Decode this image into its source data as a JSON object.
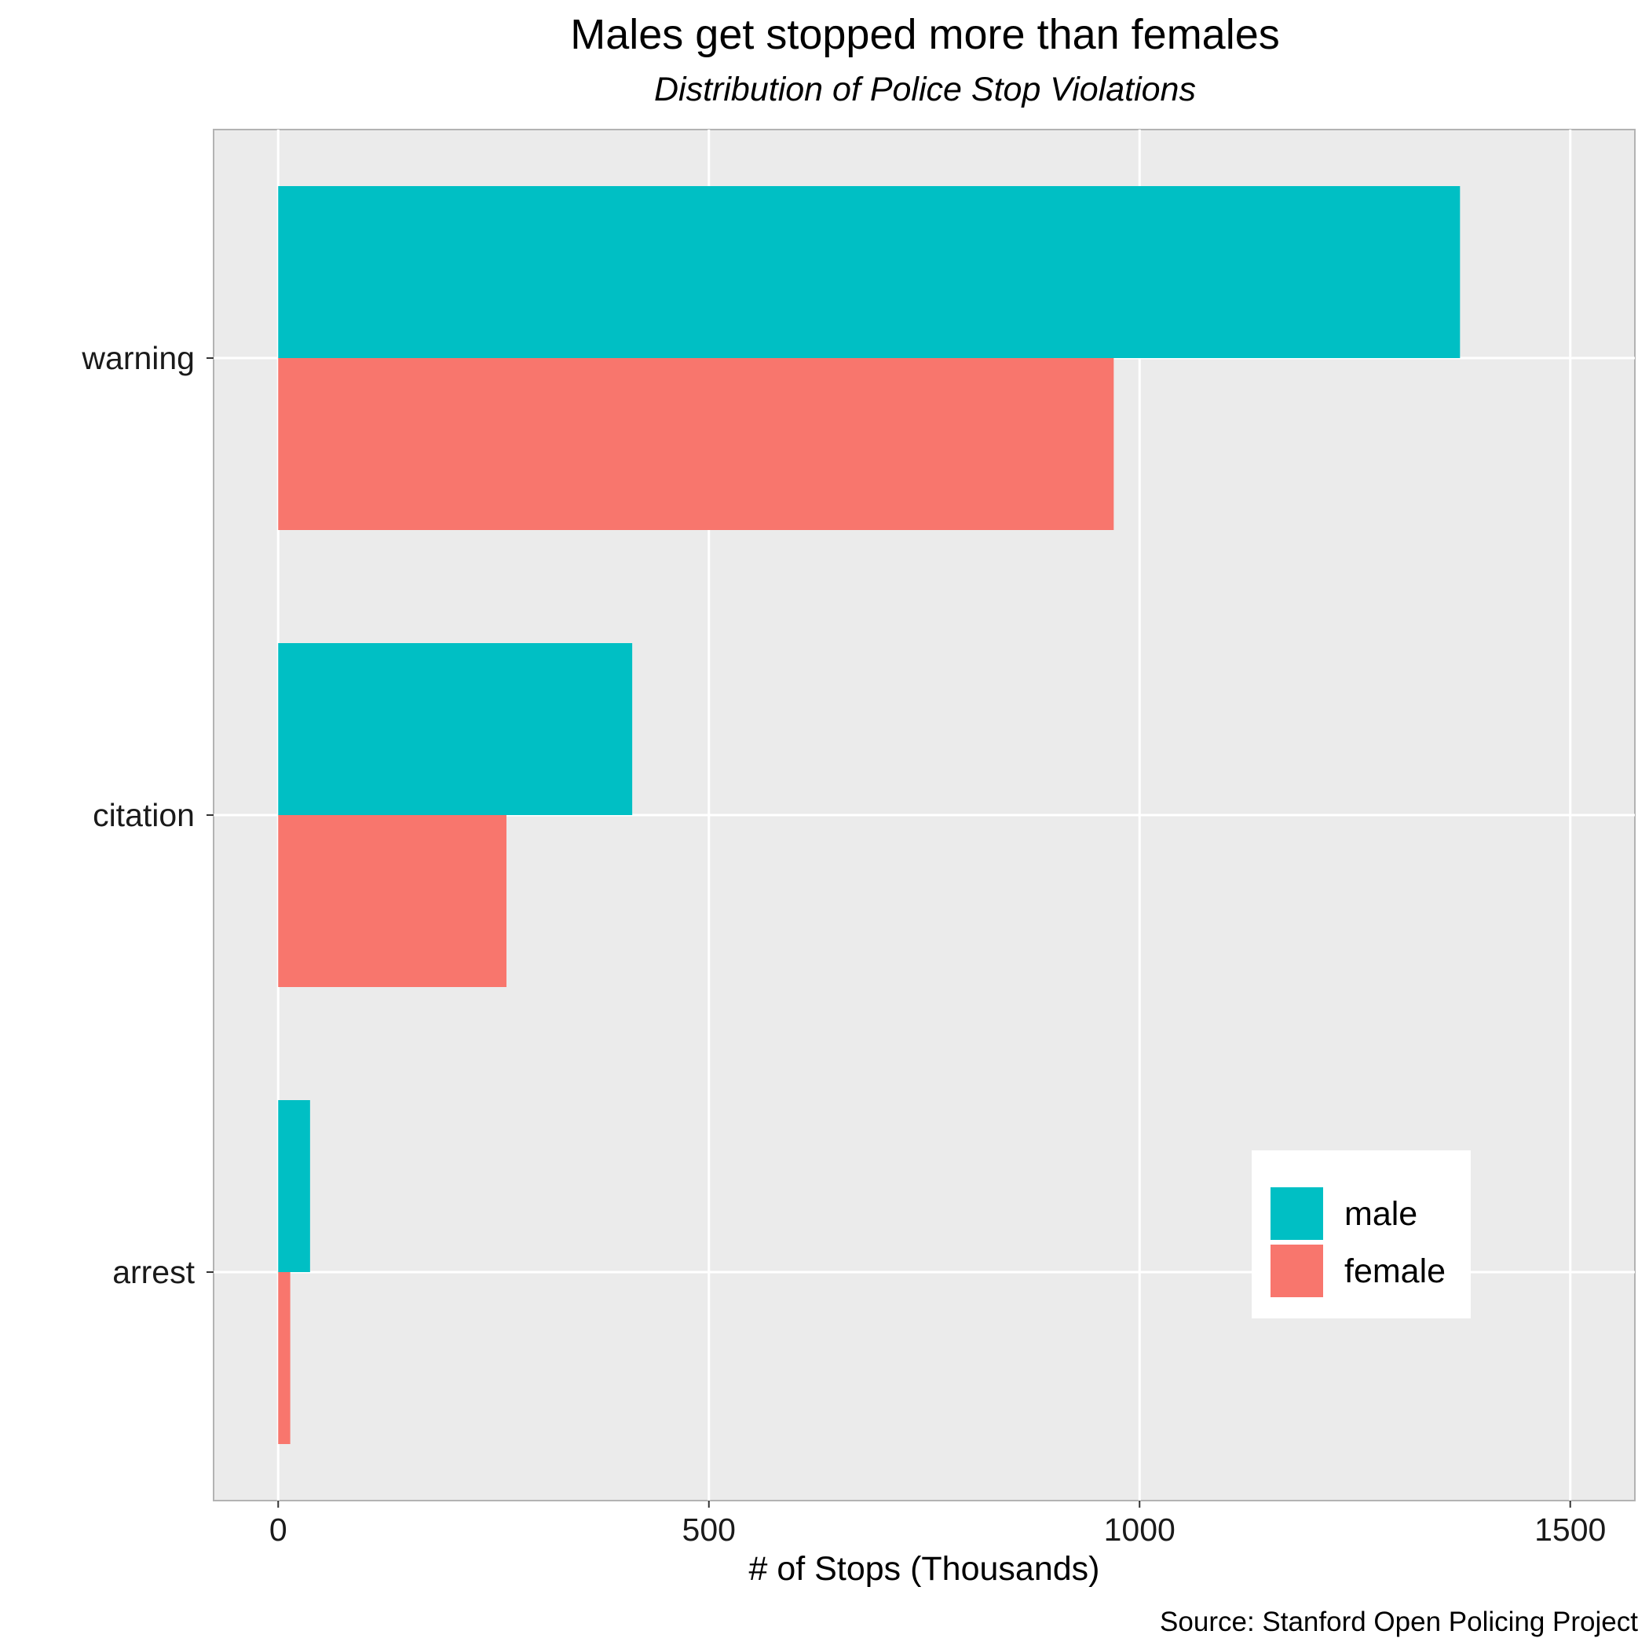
{
  "chart_data": {
    "type": "bar",
    "orientation": "horizontal",
    "title": "Males get stopped more than females",
    "subtitle": "Distribution of Police Stop Violations",
    "xlabel": "# of Stops (Thousands)",
    "ylabel": "",
    "caption": "Source: Stanford Open Policing Project",
    "categories": [
      "warning",
      "citation",
      "arrest"
    ],
    "series": [
      {
        "name": "male",
        "color": "#00BFC4",
        "values": [
          1372,
          411,
          37
        ]
      },
      {
        "name": "female",
        "color": "#F8766D",
        "values": [
          970,
          265,
          14
        ]
      }
    ],
    "xlim": [
      -75,
      1575
    ],
    "xticks": [
      0,
      500,
      1000,
      1500
    ],
    "grid": true,
    "legend_position": "bottom-right",
    "background_color": "#EBEBEB",
    "grid_color": "#FFFFFF"
  }
}
